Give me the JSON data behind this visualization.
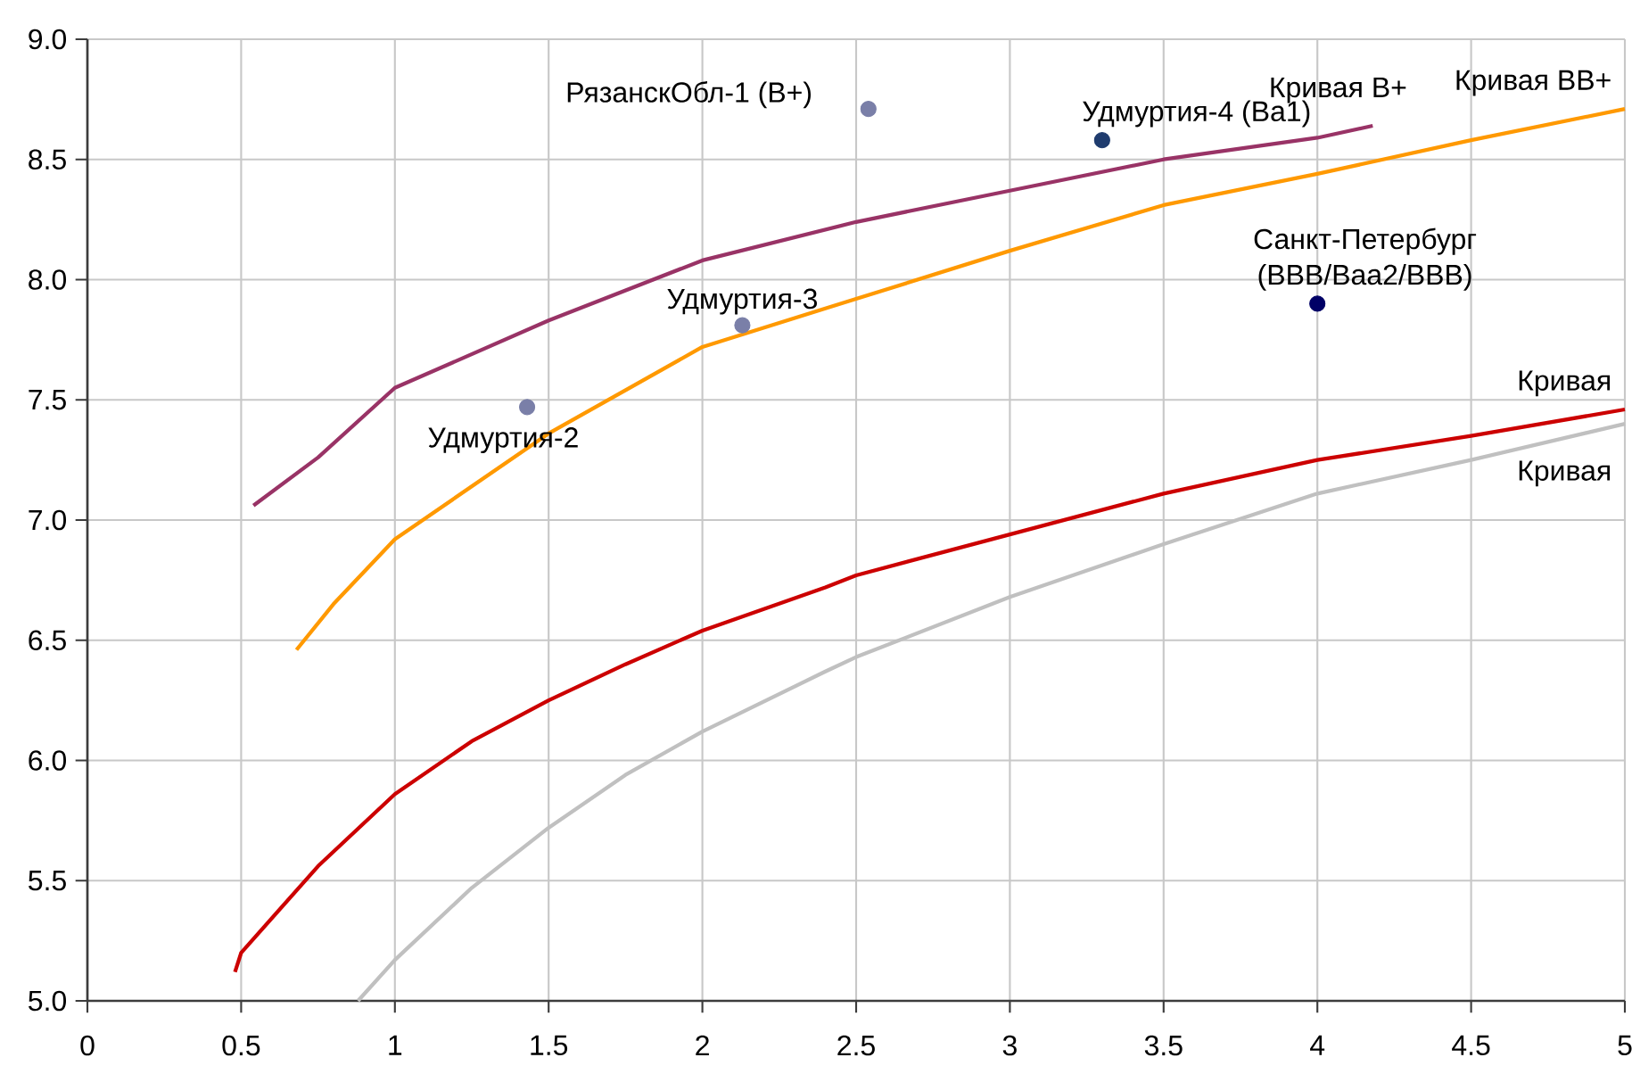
{
  "chart_data": {
    "type": "line",
    "xlim": [
      0,
      5
    ],
    "ylim": [
      5.0,
      9.0
    ],
    "xticks": [
      0,
      0.5,
      1,
      1.5,
      2,
      2.5,
      3,
      3.5,
      4,
      4.5,
      5
    ],
    "yticks": [
      {
        "value": 5.0,
        "label": "5.0"
      },
      {
        "value": 5.5,
        "label": "5.5"
      },
      {
        "value": 6.0,
        "label": "6.0"
      },
      {
        "value": 6.5,
        "label": "6.5"
      },
      {
        "value": 7.0,
        "label": "7.0"
      },
      {
        "value": 7.5,
        "label": "7.5"
      },
      {
        "value": 8.0,
        "label": "8.0"
      },
      {
        "value": 8.5,
        "label": "8.5"
      },
      {
        "value": 9.0,
        "label": "9.0"
      }
    ],
    "grid": true,
    "line_style": "solid",
    "series": [
      {
        "name": "Кривая B+",
        "color": "#993366",
        "x": [
          0.54,
          0.75,
          1.0,
          1.5,
          2.0,
          2.5,
          3.0,
          3.5,
          4.0,
          4.18
        ],
        "values": [
          7.06,
          7.26,
          7.55,
          7.83,
          8.08,
          8.24,
          8.37,
          8.5,
          8.59,
          8.64
        ]
      },
      {
        "name": "Кривая BB+",
        "color": "#ff9900",
        "x": [
          0.68,
          0.8,
          1.0,
          1.5,
          2.0,
          2.4,
          2.5,
          3.0,
          3.5,
          4.0,
          4.5,
          5.0
        ],
        "values": [
          6.46,
          6.65,
          6.92,
          7.36,
          7.72,
          7.88,
          7.92,
          8.12,
          8.31,
          8.44,
          8.58,
          8.71
        ]
      },
      {
        "name": "Кривая",
        "color": "#cc0000",
        "x": [
          0.48,
          0.5,
          0.75,
          1.0,
          1.25,
          1.5,
          1.75,
          2.0,
          2.4,
          2.5,
          3.0,
          3.5,
          4.0,
          4.5,
          5.0
        ],
        "values": [
          5.12,
          5.2,
          5.56,
          5.86,
          6.08,
          6.25,
          6.4,
          6.54,
          6.72,
          6.77,
          6.94,
          7.11,
          7.25,
          7.35,
          7.46
        ]
      },
      {
        "name": "Кривая",
        "color": "#c0c0c0",
        "x": [
          0.88,
          1.0,
          1.25,
          1.5,
          1.75,
          2.0,
          2.4,
          2.5,
          3.0,
          3.5,
          4.0,
          4.5,
          5.0
        ],
        "values": [
          5.0,
          5.17,
          5.47,
          5.72,
          5.94,
          6.12,
          6.37,
          6.43,
          6.68,
          6.9,
          7.11,
          7.25,
          7.4
        ]
      },
      {
        "type": "scatter",
        "marker": "circle",
        "x": [
          2.54,
          3.3,
          4.0,
          1.43,
          2.13
        ],
        "values": [
          8.71,
          8.58,
          7.9,
          7.47,
          7.81
        ],
        "colors": [
          "#7a7fa8",
          "#1f3c6e",
          "#000066",
          "#7a7fa8",
          "#7a7fa8"
        ]
      }
    ],
    "annotations": [
      {
        "text": "РязанскОбл-1 (B+)",
        "x": 2.54,
        "y": 8.71
      },
      {
        "text": "Удмуртия-4 (Ba1)",
        "x": 3.3,
        "y": 8.58
      },
      {
        "text": "Санкт-Петербург (BBB/Baa2/BBB)",
        "x": 4.0,
        "y": 7.9
      },
      {
        "text": "Удмуртия-2",
        "x": 1.43,
        "y": 7.47
      },
      {
        "text": "Удмуртия-3",
        "x": 2.13,
        "y": 7.81
      }
    ]
  }
}
